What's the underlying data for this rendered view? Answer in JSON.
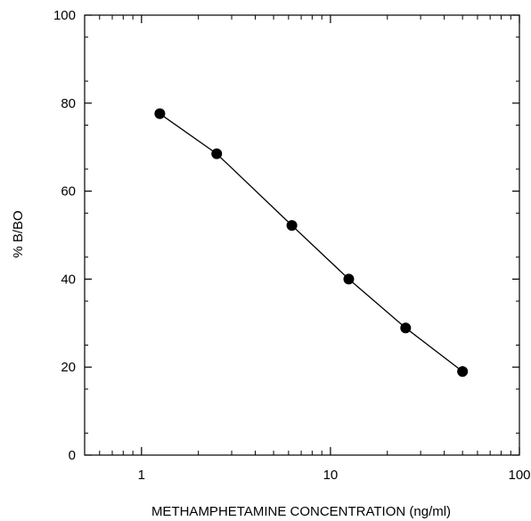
{
  "chart_data": {
    "type": "line",
    "title": "",
    "xlabel": "METHAMPHETAMINE CONCENTRATION (ng/ml)",
    "ylabel": "% B/BO",
    "xscale": "log",
    "xlim": [
      0.5,
      100
    ],
    "ylim": [
      0,
      100
    ],
    "x_ticks": [
      1,
      10,
      100
    ],
    "x_tick_labels": [
      "1",
      "10",
      "100"
    ],
    "y_ticks": [
      0,
      20,
      40,
      60,
      80,
      100
    ],
    "y_tick_labels": [
      "0",
      "20",
      "40",
      "60",
      "80",
      "100"
    ],
    "grid": false,
    "legend": "none",
    "series": [
      {
        "x": [
          1.25,
          2.5,
          6.25,
          12.5,
          25,
          50
        ],
        "y": [
          77.6,
          68.5,
          52.2,
          40.0,
          28.9,
          19.0
        ]
      }
    ],
    "colors": {
      "line": "#000000",
      "marker": "#000000",
      "axis": "#000000"
    }
  }
}
